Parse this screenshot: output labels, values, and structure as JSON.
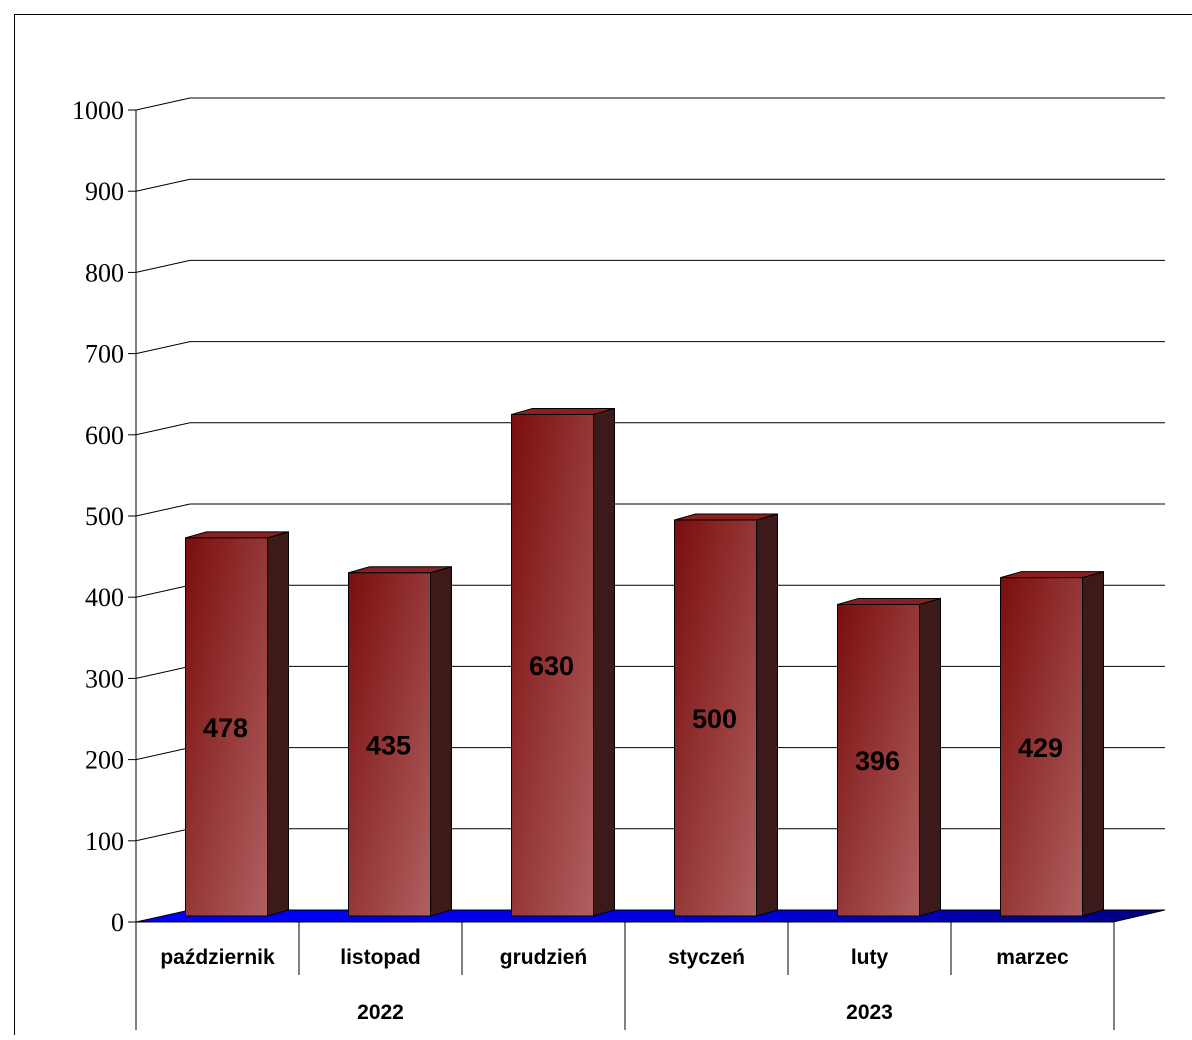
{
  "chart_data": {
    "type": "bar",
    "categories": [
      "październik",
      "listopad",
      "grudzień",
      "styczeń",
      "luty",
      "marzec"
    ],
    "groups": [
      {
        "label": "2022",
        "categories": [
          "październik",
          "listopad",
          "grudzień"
        ]
      },
      {
        "label": "2023",
        "categories": [
          "styczeń",
          "luty",
          "marzec"
        ]
      }
    ],
    "values": [
      478,
      435,
      630,
      500,
      396,
      429
    ],
    "ylim": [
      0,
      1000
    ],
    "yticks": [
      0,
      100,
      200,
      300,
      400,
      500,
      600,
      700,
      800,
      900,
      1000
    ],
    "grid": true,
    "legend": "none",
    "colors": {
      "bar_front_dark": "#7a0e0e",
      "bar_front_light": "#b06060",
      "bar_side": "#3d1a1a",
      "bar_top": "#8a2020",
      "floor": "#0000ff"
    }
  }
}
